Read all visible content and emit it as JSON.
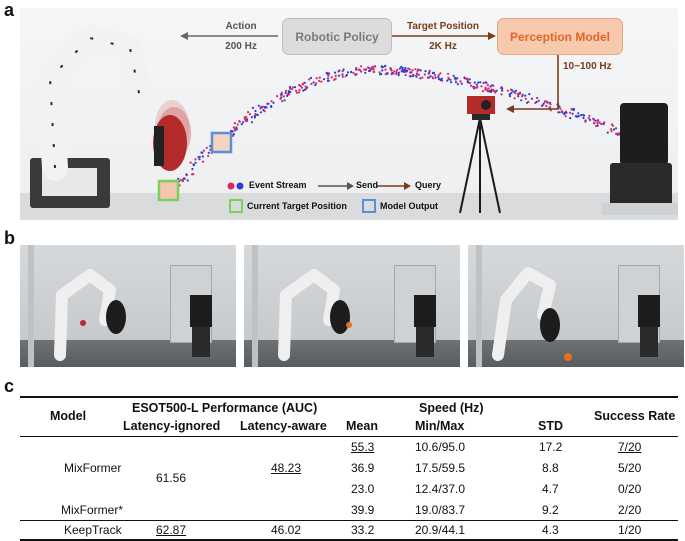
{
  "panels": {
    "a": "a",
    "b": "b",
    "c": "c"
  },
  "diagram": {
    "robotic_policy": "Robotic Policy",
    "perception_model": "Perception Model",
    "action_label": "Action",
    "action_rate": "200 Hz",
    "target_label": "Target Position",
    "target_rate": "2K Hz",
    "query_rate": "10~100 Hz",
    "colors": {
      "policy_box": "#dcdcdc",
      "perception_box": "#f7c9ad",
      "perception_text": "#e0672a",
      "arrow_brown": "#7a3b1a",
      "event_red": "#e0245e",
      "event_blue": "#2c3cd6",
      "target_box": "#7cd05a",
      "model_box": "#5b8fd8"
    }
  },
  "legend": {
    "event_stream": "Event Stream",
    "send": "Send",
    "query": "Query",
    "current_target": "Current Target Position",
    "model_output": "Model Output"
  },
  "table": {
    "headers": {
      "model": "Model",
      "esot": "ESOT500-L Performance (AUC)",
      "latency_ignored": "Latency-ignored",
      "latency_aware": "Latency-aware",
      "speed": "Speed (Hz)",
      "mean": "Mean",
      "minmax": "Min/Max",
      "std": "STD",
      "success": "Success Rate"
    },
    "mixformer": {
      "name": "MixFormer",
      "latency_ignored": "61.56",
      "latency_aware": "48.23",
      "rows": [
        {
          "mean": "55.3",
          "minmax": "10.6/95.0",
          "std": "17.2",
          "success": "7/20"
        },
        {
          "mean": "36.9",
          "minmax": "17.5/59.5",
          "std": "8.8",
          "success": "5/20"
        },
        {
          "mean": "23.0",
          "minmax": "12.4/37.0",
          "std": "4.7",
          "success": "0/20"
        }
      ]
    },
    "mixformer_star": {
      "name": "MixFormer*",
      "mean": "39.9",
      "minmax": "19.0/83.7",
      "std": "9.2",
      "success": "2/20"
    },
    "keeptrack": {
      "name": "KeepTrack",
      "latency_ignored": "62.87",
      "latency_aware": "46.02",
      "mean": "33.2",
      "minmax": "20.9/44.1",
      "std": "4.3",
      "success": "1/20"
    }
  }
}
